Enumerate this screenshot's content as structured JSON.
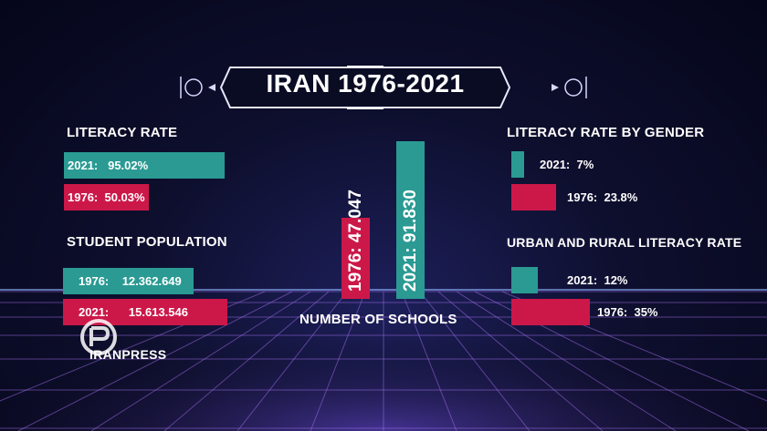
{
  "title": "IRAN 1976-2021",
  "colors": {
    "teal": "#2a9a93",
    "red": "#cc1849",
    "background": "#0e0f2e"
  },
  "sections": {
    "literacy_rate": "LITERACY RATE",
    "student_population": "STUDENT POPULATION",
    "literacy_by_gender": "LITERACY RATE BY GENDER",
    "urban_rural": "URBAN AND RURAL LITERACY RATE",
    "schools": "NUMBER OF SCHOOLS"
  },
  "labels": {
    "lit_2021": "2021:   95.02%",
    "lit_1976": "1976:  50.03%",
    "pop_1976": "1976:    12.362.649",
    "pop_2021": "2021:      15.613.546",
    "gender_2021": "2021:  7%",
    "gender_1976": "1976:  23.8%",
    "urban_2021": "2021:  12%",
    "urban_1976": "1976:  35%",
    "schools_1976": "1976: 47.047",
    "schools_2021": "2021:  91.830"
  },
  "logo_text": "IRANPRESS",
  "chart_data": [
    {
      "type": "bar",
      "title": "LITERACY RATE",
      "categories": [
        "2021",
        "1976"
      ],
      "values": [
        95.02,
        50.03
      ]
    },
    {
      "type": "bar",
      "title": "STUDENT POPULATION",
      "categories": [
        "1976",
        "2021"
      ],
      "values": [
        12362649,
        15613546
      ]
    },
    {
      "type": "bar",
      "title": "NUMBER OF SCHOOLS",
      "categories": [
        "1976",
        "2021"
      ],
      "values": [
        47047,
        91830
      ]
    },
    {
      "type": "bar",
      "title": "LITERACY RATE BY GENDER",
      "categories": [
        "2021",
        "1976"
      ],
      "values": [
        7,
        23.8
      ]
    },
    {
      "type": "bar",
      "title": "URBAN AND RURAL LITERACY RATE",
      "categories": [
        "2021",
        "1976"
      ],
      "values": [
        12,
        35
      ]
    }
  ]
}
